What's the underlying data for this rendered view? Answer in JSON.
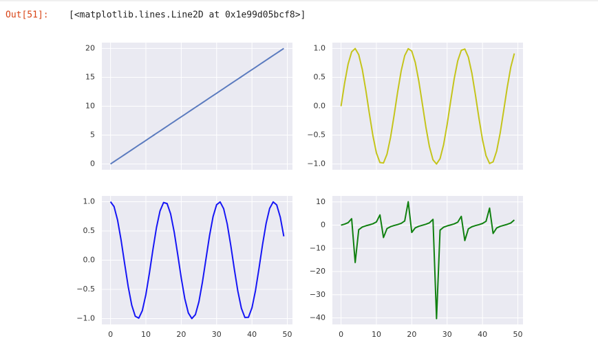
{
  "prompt": "Out[51]:",
  "output": "[<matplotlib.lines.Line2D at 0x1e99d05bcf8>]",
  "chart_data": [
    {
      "type": "line",
      "color": "#5b7bbf",
      "grid": true,
      "xtick_labels": false,
      "x": [
        0,
        1,
        2,
        3,
        4,
        5,
        6,
        7,
        8,
        9,
        10,
        11,
        12,
        13,
        14,
        15,
        16,
        17,
        18,
        19,
        20,
        21,
        22,
        23,
        24,
        25,
        26,
        27,
        28,
        29,
        30,
        31,
        32,
        33,
        34,
        35,
        36,
        37,
        38,
        39,
        40,
        41,
        42,
        43,
        44,
        45,
        46,
        47,
        48,
        49
      ],
      "values": [
        0,
        0.41,
        0.82,
        1.22,
        1.63,
        2.04,
        2.45,
        2.86,
        3.27,
        3.67,
        4.08,
        4.49,
        4.9,
        5.31,
        5.71,
        6.12,
        6.53,
        6.94,
        7.35,
        7.76,
        8.16,
        8.57,
        8.98,
        9.39,
        9.8,
        10.2,
        10.61,
        11.02,
        11.43,
        11.84,
        12.24,
        12.65,
        13.06,
        13.47,
        13.88,
        14.29,
        14.69,
        15.1,
        15.51,
        15.92,
        16.33,
        16.73,
        17.14,
        17.55,
        17.96,
        18.37,
        18.78,
        19.18,
        19.59,
        20
      ],
      "xlim": [
        -2.45,
        51.45
      ],
      "ylim": [
        -1,
        21
      ],
      "xticks": [
        0,
        10,
        20,
        30,
        40,
        50
      ],
      "yticks": [
        0,
        5,
        10,
        15,
        20
      ]
    },
    {
      "type": "line",
      "color": "#c4c41a",
      "grid": true,
      "xtick_labels": false,
      "x": [
        0,
        1,
        2,
        3,
        4,
        5,
        6,
        7,
        8,
        9,
        10,
        11,
        12,
        13,
        14,
        15,
        16,
        17,
        18,
        19,
        20,
        21,
        22,
        23,
        24,
        25,
        26,
        27,
        28,
        29,
        30,
        31,
        32,
        33,
        34,
        35,
        36,
        37,
        38,
        39,
        40,
        41,
        42,
        43,
        44,
        45,
        46,
        47,
        48,
        49
      ],
      "values": [
        0,
        0.397,
        0.729,
        0.94,
        0.998,
        0.892,
        0.638,
        0.281,
        -0.123,
        -0.507,
        -0.808,
        -0.975,
        -0.983,
        -0.829,
        -0.539,
        -0.16,
        0.245,
        0.61,
        0.875,
        0.995,
        0.953,
        0.754,
        0.432,
        0.037,
        -0.363,
        -0.702,
        -0.928,
        -1,
        -0.907,
        -0.666,
        -0.316,
        0.087,
        0.475,
        0.785,
        0.967,
        0.989,
        0.849,
        0.569,
        0.196,
        -0.209,
        -0.58,
        -0.856,
        -0.991,
        -0.963,
        -0.777,
        -0.464,
        -0.073,
        0.328,
        0.676,
        0.913
      ],
      "xlim": [
        -2.45,
        51.45
      ],
      "ylim": [
        -1.1,
        1.1
      ],
      "xticks": [
        0,
        10,
        20,
        30,
        40,
        50
      ],
      "yticks": [
        {
          "value": -1,
          "label": "−1.0"
        },
        {
          "value": -0.5,
          "label": "−0.5"
        },
        {
          "value": 0,
          "label": "0.0"
        },
        {
          "value": 0.5,
          "label": "0.5"
        },
        {
          "value": 1,
          "label": "1.0"
        }
      ]
    },
    {
      "type": "line",
      "color": "#1515f5",
      "grid": true,
      "xtick_labels": true,
      "x": [
        0,
        1,
        2,
        3,
        4,
        5,
        6,
        7,
        8,
        9,
        10,
        11,
        12,
        13,
        14,
        15,
        16,
        17,
        18,
        19,
        20,
        21,
        22,
        23,
        24,
        25,
        26,
        27,
        28,
        29,
        30,
        31,
        32,
        33,
        34,
        35,
        36,
        37,
        38,
        39,
        40,
        41,
        42,
        43,
        44,
        45,
        46,
        47,
        48,
        49
      ],
      "values": [
        1,
        0.918,
        0.685,
        0.34,
        -0.062,
        -0.452,
        -0.77,
        -0.96,
        -0.992,
        -0.862,
        -0.589,
        -0.221,
        0.184,
        0.559,
        0.843,
        0.987,
        0.969,
        0.792,
        0.485,
        0.099,
        -0.304,
        -0.657,
        -0.902,
        -0.999,
        -0.932,
        -0.711,
        -0.373,
        0.024,
        0.42,
        0.746,
        0.949,
        0.996,
        0.88,
        0.62,
        0.256,
        -0.149,
        -0.529,
        -0.822,
        -0.981,
        -0.978,
        -0.815,
        -0.518,
        -0.135,
        0.269,
        0.629,
        0.886,
        0.997,
        0.945,
        0.737,
        0.408
      ],
      "xlim": [
        -2.45,
        51.45
      ],
      "ylim": [
        -1.1,
        1.1
      ],
      "xticks": [
        0,
        10,
        20,
        30,
        40,
        50
      ],
      "yticks": [
        {
          "value": -1,
          "label": "−1.0"
        },
        {
          "value": -0.5,
          "label": "−0.5"
        },
        {
          "value": 0,
          "label": "0.0"
        },
        {
          "value": 0.5,
          "label": "0.5"
        },
        {
          "value": 1,
          "label": "1.0"
        }
      ]
    },
    {
      "type": "line",
      "color": "#108010",
      "grid": true,
      "xtick_labels": true,
      "x": [
        0,
        1,
        2,
        3,
        4,
        5,
        6,
        7,
        8,
        9,
        10,
        11,
        12,
        13,
        14,
        15,
        16,
        17,
        18,
        19,
        20,
        21,
        22,
        23,
        24,
        25,
        26,
        27,
        28,
        29,
        30,
        31,
        32,
        33,
        34,
        35,
        36,
        37,
        38,
        39,
        40,
        41,
        42,
        43,
        44,
        45,
        46,
        47,
        48,
        49
      ],
      "values": [
        0,
        0.432,
        1.064,
        2.765,
        -16.1,
        -1.973,
        -0.829,
        -0.293,
        0.124,
        0.588,
        1.372,
        4.41,
        -5.34,
        -1.483,
        -0.639,
        -0.162,
        0.253,
        0.77,
        1.804,
        10.07,
        -3.13,
        -1.148,
        -0.479,
        -0.037,
        0.389,
        0.987,
        2.488,
        -40.3,
        -2.16,
        -0.893,
        -0.333,
        0.087,
        0.54,
        1.266,
        3.78,
        -6.64,
        -1.605,
        -0.692,
        -0.2,
        0.214,
        0.712,
        1.653,
        7.34,
        -3.58,
        -1.235,
        -0.524,
        -0.073,
        0.347,
        0.917,
        2.237
      ],
      "xlim": [
        -2.45,
        51.45
      ],
      "ylim": [
        -42.8,
        12.6
      ],
      "xticks": [
        0,
        10,
        20,
        30,
        40,
        50
      ],
      "yticks": [
        {
          "value": -40,
          "label": "−40"
        },
        {
          "value": -30,
          "label": "−30"
        },
        {
          "value": -20,
          "label": "−20"
        },
        {
          "value": -10,
          "label": "−10"
        },
        0,
        10
      ]
    }
  ]
}
